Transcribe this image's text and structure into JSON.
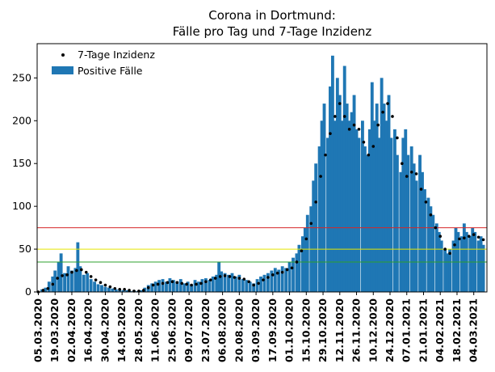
{
  "chart_data": {
    "type": "bar",
    "title": "Corona in Dortmund:",
    "subtitle": "Fälle pro Tag und 7-Tage Inzidenz",
    "xlabel": "",
    "ylabel": "",
    "ylim": [
      0,
      290
    ],
    "xlim": [
      "2020-03-04",
      "2021-03-15"
    ],
    "yticks": [
      0,
      50,
      100,
      150,
      200,
      250
    ],
    "xtick_labels": [
      "05.03.2020",
      "19.03.2020",
      "02.04.2020",
      "16.04.2020",
      "30.04.2020",
      "14.05.2020",
      "28.05.2020",
      "11.06.2020",
      "25.06.2020",
      "09.07.2020",
      "23.07.2020",
      "06.08.2020",
      "20.08.2020",
      "03.09.2020",
      "17.09.2020",
      "01.10.2020",
      "15.10.2020",
      "29.10.2020",
      "12.11.2020",
      "26.11.2020",
      "10.12.2020",
      "24.12.2020",
      "07.01.2021",
      "21.01.2021",
      "04.02.2021",
      "18.02.2021",
      "04.03.2021"
    ],
    "xtick_dates": [
      "2020-03-05",
      "2020-03-19",
      "2020-04-02",
      "2020-04-16",
      "2020-04-30",
      "2020-05-14",
      "2020-05-28",
      "2020-06-11",
      "2020-06-25",
      "2020-07-09",
      "2020-07-23",
      "2020-08-06",
      "2020-08-20",
      "2020-09-03",
      "2020-09-17",
      "2020-10-01",
      "2020-10-15",
      "2020-10-29",
      "2020-11-12",
      "2020-11-26",
      "2020-12-10",
      "2020-12-24",
      "2021-01-07",
      "2021-01-21",
      "2021-02-04",
      "2021-02-18",
      "2021-03-04"
    ],
    "reference_lines": [
      {
        "value": 35,
        "color": "#2ca02c"
      },
      {
        "value": 50,
        "color": "#e5e500"
      },
      {
        "value": 75,
        "color": "#d62728"
      }
    ],
    "legend_position": "top-left",
    "series": [
      {
        "name": "7-Tage Inzidenz",
        "kind": "scatter",
        "color": "#000000",
        "points": [
          [
            "2020-03-05",
            0
          ],
          [
            "2020-03-09",
            2
          ],
          [
            "2020-03-13",
            4
          ],
          [
            "2020-03-17",
            9
          ],
          [
            "2020-03-21",
            16
          ],
          [
            "2020-03-25",
            19
          ],
          [
            "2020-03-29",
            20
          ],
          [
            "2020-04-02",
            23
          ],
          [
            "2020-04-06",
            25
          ],
          [
            "2020-04-10",
            26
          ],
          [
            "2020-04-14",
            23
          ],
          [
            "2020-04-18",
            18
          ],
          [
            "2020-04-22",
            14
          ],
          [
            "2020-04-26",
            11
          ],
          [
            "2020-04-30",
            8
          ],
          [
            "2020-05-04",
            6
          ],
          [
            "2020-05-08",
            4
          ],
          [
            "2020-05-12",
            3
          ],
          [
            "2020-05-16",
            3
          ],
          [
            "2020-05-20",
            2
          ],
          [
            "2020-05-24",
            1
          ],
          [
            "2020-05-28",
            1
          ],
          [
            "2020-06-01",
            2
          ],
          [
            "2020-06-05",
            5
          ],
          [
            "2020-06-09",
            8
          ],
          [
            "2020-06-13",
            9
          ],
          [
            "2020-06-17",
            10
          ],
          [
            "2020-06-21",
            11
          ],
          [
            "2020-06-25",
            12
          ],
          [
            "2020-06-29",
            11
          ],
          [
            "2020-07-03",
            10
          ],
          [
            "2020-07-07",
            9
          ],
          [
            "2020-07-11",
            8
          ],
          [
            "2020-07-15",
            9
          ],
          [
            "2020-07-19",
            10
          ],
          [
            "2020-07-23",
            12
          ],
          [
            "2020-07-27",
            14
          ],
          [
            "2020-07-31",
            16
          ],
          [
            "2020-08-04",
            18
          ],
          [
            "2020-08-08",
            19
          ],
          [
            "2020-08-12",
            18
          ],
          [
            "2020-08-16",
            17
          ],
          [
            "2020-08-20",
            16
          ],
          [
            "2020-08-24",
            15
          ],
          [
            "2020-08-28",
            12
          ],
          [
            "2020-09-01",
            8
          ],
          [
            "2020-09-05",
            10
          ],
          [
            "2020-09-09",
            14
          ],
          [
            "2020-09-13",
            17
          ],
          [
            "2020-09-17",
            20
          ],
          [
            "2020-09-21",
            22
          ],
          [
            "2020-09-25",
            23
          ],
          [
            "2020-09-29",
            26
          ],
          [
            "2020-10-03",
            28
          ],
          [
            "2020-10-07",
            35
          ],
          [
            "2020-10-11",
            48
          ],
          [
            "2020-10-15",
            62
          ],
          [
            "2020-10-19",
            80
          ],
          [
            "2020-10-23",
            105
          ],
          [
            "2020-10-27",
            135
          ],
          [
            "2020-10-31",
            160
          ],
          [
            "2020-11-04",
            185
          ],
          [
            "2020-11-08",
            205
          ],
          [
            "2020-11-12",
            220
          ],
          [
            "2020-11-16",
            205
          ],
          [
            "2020-11-20",
            190
          ],
          [
            "2020-11-24",
            195
          ],
          [
            "2020-11-28",
            190
          ],
          [
            "2020-12-02",
            175
          ],
          [
            "2020-12-06",
            160
          ],
          [
            "2020-12-10",
            170
          ],
          [
            "2020-12-14",
            195
          ],
          [
            "2020-12-18",
            210
          ],
          [
            "2020-12-22",
            220
          ],
          [
            "2020-12-26",
            205
          ],
          [
            "2020-12-30",
            180
          ],
          [
            "2021-01-03",
            150
          ],
          [
            "2021-01-07",
            135
          ],
          [
            "2021-01-11",
            140
          ],
          [
            "2021-01-15",
            138
          ],
          [
            "2021-01-19",
            120
          ],
          [
            "2021-01-23",
            105
          ],
          [
            "2021-01-27",
            90
          ],
          [
            "2021-01-31",
            75
          ],
          [
            "2021-02-04",
            65
          ],
          [
            "2021-02-08",
            50
          ],
          [
            "2021-02-12",
            45
          ],
          [
            "2021-02-16",
            55
          ],
          [
            "2021-02-20",
            62
          ],
          [
            "2021-02-24",
            63
          ],
          [
            "2021-02-28",
            65
          ],
          [
            "2021-03-04",
            67
          ],
          [
            "2021-03-08",
            64
          ],
          [
            "2021-03-12",
            61
          ]
        ]
      },
      {
        "name": "Positive Fälle",
        "kind": "bar",
        "color": "#1f77b4",
        "points": [
          [
            "2020-03-05",
            0
          ],
          [
            "2020-03-08",
            3
          ],
          [
            "2020-03-11",
            5
          ],
          [
            "2020-03-14",
            12
          ],
          [
            "2020-03-17",
            18
          ],
          [
            "2020-03-19",
            25
          ],
          [
            "2020-03-22",
            35
          ],
          [
            "2020-03-24",
            45
          ],
          [
            "2020-03-27",
            22
          ],
          [
            "2020-03-30",
            30
          ],
          [
            "2020-04-02",
            25
          ],
          [
            "2020-04-05",
            28
          ],
          [
            "2020-04-07",
            58
          ],
          [
            "2020-04-09",
            30
          ],
          [
            "2020-04-12",
            20
          ],
          [
            "2020-04-15",
            22
          ],
          [
            "2020-04-18",
            15
          ],
          [
            "2020-04-21",
            12
          ],
          [
            "2020-04-24",
            9
          ],
          [
            "2020-04-27",
            8
          ],
          [
            "2020-04-30",
            6
          ],
          [
            "2020-05-03",
            5
          ],
          [
            "2020-05-06",
            4
          ],
          [
            "2020-05-09",
            3
          ],
          [
            "2020-05-12",
            3
          ],
          [
            "2020-05-15",
            2
          ],
          [
            "2020-05-18",
            2
          ],
          [
            "2020-05-21",
            1
          ],
          [
            "2020-05-24",
            2
          ],
          [
            "2020-05-27",
            1
          ],
          [
            "2020-05-30",
            2
          ],
          [
            "2020-06-02",
            5
          ],
          [
            "2020-06-05",
            8
          ],
          [
            "2020-06-08",
            10
          ],
          [
            "2020-06-11",
            12
          ],
          [
            "2020-06-14",
            14
          ],
          [
            "2020-06-17",
            15
          ],
          [
            "2020-06-20",
            12
          ],
          [
            "2020-06-23",
            16
          ],
          [
            "2020-06-26",
            14
          ],
          [
            "2020-06-29",
            12
          ],
          [
            "2020-07-02",
            15
          ],
          [
            "2020-07-05",
            10
          ],
          [
            "2020-07-08",
            12
          ],
          [
            "2020-07-11",
            9
          ],
          [
            "2020-07-14",
            14
          ],
          [
            "2020-07-17",
            12
          ],
          [
            "2020-07-20",
            15
          ],
          [
            "2020-07-23",
            16
          ],
          [
            "2020-07-26",
            14
          ],
          [
            "2020-07-29",
            18
          ],
          [
            "2020-08-01",
            20
          ],
          [
            "2020-08-03",
            35
          ],
          [
            "2020-08-05",
            24
          ],
          [
            "2020-08-08",
            22
          ],
          [
            "2020-08-11",
            20
          ],
          [
            "2020-08-14",
            22
          ],
          [
            "2020-08-17",
            18
          ],
          [
            "2020-08-20",
            20
          ],
          [
            "2020-08-23",
            15
          ],
          [
            "2020-08-26",
            14
          ],
          [
            "2020-08-29",
            12
          ],
          [
            "2020-09-01",
            10
          ],
          [
            "2020-09-04",
            15
          ],
          [
            "2020-09-07",
            18
          ],
          [
            "2020-09-10",
            20
          ],
          [
            "2020-09-13",
            22
          ],
          [
            "2020-09-16",
            25
          ],
          [
            "2020-09-19",
            28
          ],
          [
            "2020-09-22",
            26
          ],
          [
            "2020-09-25",
            30
          ],
          [
            "2020-09-28",
            28
          ],
          [
            "2020-10-01",
            35
          ],
          [
            "2020-10-04",
            40
          ],
          [
            "2020-10-07",
            45
          ],
          [
            "2020-10-09",
            55
          ],
          [
            "2020-10-12",
            65
          ],
          [
            "2020-10-14",
            75
          ],
          [
            "2020-10-16",
            90
          ],
          [
            "2020-10-19",
            100
          ],
          [
            "2020-10-21",
            130
          ],
          [
            "2020-10-23",
            150
          ],
          [
            "2020-10-26",
            170
          ],
          [
            "2020-10-28",
            200
          ],
          [
            "2020-10-30",
            220
          ],
          [
            "2020-11-02",
            180
          ],
          [
            "2020-11-04",
            240
          ],
          [
            "2020-11-06",
            276
          ],
          [
            "2020-11-08",
            200
          ],
          [
            "2020-11-10",
            250
          ],
          [
            "2020-11-12",
            230
          ],
          [
            "2020-11-14",
            200
          ],
          [
            "2020-11-16",
            264
          ],
          [
            "2020-11-18",
            220
          ],
          [
            "2020-11-20",
            200
          ],
          [
            "2020-11-22",
            210
          ],
          [
            "2020-11-24",
            230
          ],
          [
            "2020-11-26",
            190
          ],
          [
            "2020-11-28",
            180
          ],
          [
            "2020-12-01",
            200
          ],
          [
            "2020-12-03",
            170
          ],
          [
            "2020-12-05",
            160
          ],
          [
            "2020-12-07",
            190
          ],
          [
            "2020-12-09",
            245
          ],
          [
            "2020-12-11",
            200
          ],
          [
            "2020-12-13",
            220
          ],
          [
            "2020-12-15",
            180
          ],
          [
            "2020-12-17",
            250
          ],
          [
            "2020-12-19",
            220
          ],
          [
            "2020-12-21",
            200
          ],
          [
            "2020-12-23",
            230
          ],
          [
            "2020-12-25",
            180
          ],
          [
            "2020-12-28",
            190
          ],
          [
            "2020-12-30",
            160
          ],
          [
            "2021-01-02",
            140
          ],
          [
            "2021-01-04",
            180
          ],
          [
            "2021-01-06",
            190
          ],
          [
            "2021-01-08",
            160
          ],
          [
            "2021-01-11",
            170
          ],
          [
            "2021-01-13",
            150
          ],
          [
            "2021-01-15",
            130
          ],
          [
            "2021-01-18",
            160
          ],
          [
            "2021-01-20",
            140
          ],
          [
            "2021-01-22",
            120
          ],
          [
            "2021-01-25",
            110
          ],
          [
            "2021-01-27",
            100
          ],
          [
            "2021-01-29",
            90
          ],
          [
            "2021-02-01",
            80
          ],
          [
            "2021-02-03",
            70
          ],
          [
            "2021-02-05",
            60
          ],
          [
            "2021-02-08",
            50
          ],
          [
            "2021-02-10",
            45
          ],
          [
            "2021-02-12",
            50
          ],
          [
            "2021-02-15",
            60
          ],
          [
            "2021-02-17",
            75
          ],
          [
            "2021-02-19",
            70
          ],
          [
            "2021-02-22",
            65
          ],
          [
            "2021-02-24",
            80
          ],
          [
            "2021-02-26",
            70
          ],
          [
            "2021-03-01",
            65
          ],
          [
            "2021-03-03",
            75
          ],
          [
            "2021-03-05",
            70
          ],
          [
            "2021-03-08",
            60
          ],
          [
            "2021-03-10",
            65
          ],
          [
            "2021-03-12",
            55
          ]
        ]
      }
    ]
  }
}
